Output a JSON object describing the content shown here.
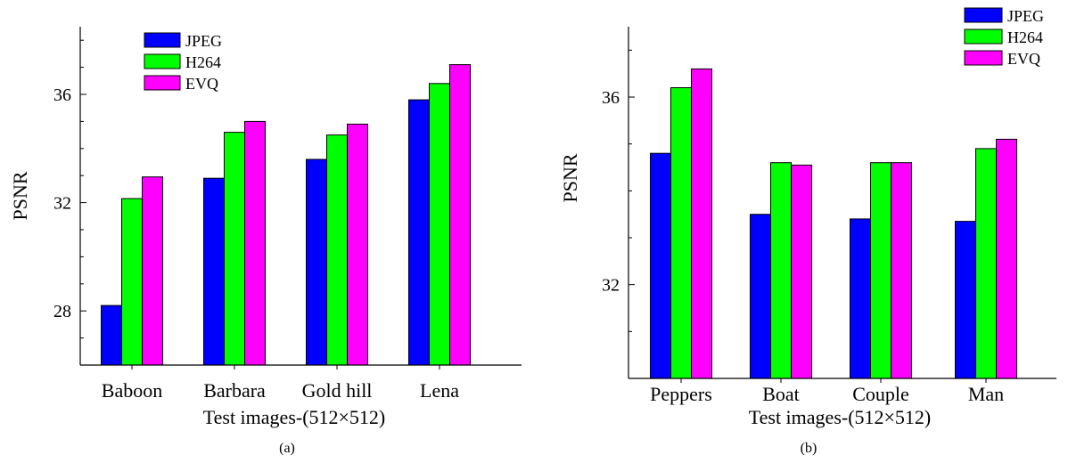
{
  "chart_data": [
    {
      "type": "bar",
      "panel_label": "(a)",
      "categories": [
        "Baboon",
        "Barbara",
        "Gold hill",
        "Lena"
      ],
      "series": [
        {
          "name": "JPEG",
          "color": "#0000ff",
          "values": [
            28.2,
            32.9,
            33.6,
            35.8
          ]
        },
        {
          "name": "H264",
          "color": "#00ff00",
          "values": [
            32.15,
            34.6,
            34.5,
            36.4
          ]
        },
        {
          "name": "EVQ",
          "color": "#ff00ff",
          "values": [
            32.95,
            35.0,
            34.9,
            37.1
          ]
        }
      ],
      "xlabel": "Test images-(512×512)",
      "ylabel": "PSNR",
      "ylim": [
        26,
        38.5
      ],
      "yticks": [
        28,
        32,
        36
      ],
      "ytick_labels": [
        "28",
        "32",
        "36"
      ],
      "legend_position": "top-left"
    },
    {
      "type": "bar",
      "panel_label": "(b)",
      "categories": [
        "Peppers",
        "Boat",
        "Couple",
        "Man"
      ],
      "series": [
        {
          "name": "JPEG",
          "color": "#0000ff",
          "values": [
            34.8,
            33.5,
            33.4,
            33.35
          ]
        },
        {
          "name": "H264",
          "color": "#00ff00",
          "values": [
            36.2,
            34.6,
            34.6,
            34.9
          ]
        },
        {
          "name": "EVQ",
          "color": "#ff00ff",
          "values": [
            36.6,
            34.55,
            34.6,
            35.1
          ]
        }
      ],
      "xlabel": "Test images-(512×512)",
      "ylabel": "PSNR",
      "ylim": [
        30,
        37.5
      ],
      "yticks": [
        32,
        36
      ],
      "ytick_labels": [
        "32",
        "36"
      ],
      "legend_position": "top-right"
    }
  ]
}
